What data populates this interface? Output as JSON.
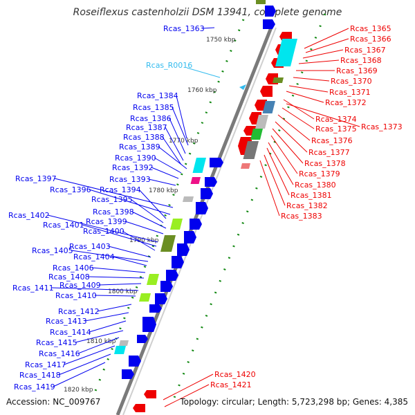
{
  "header": {
    "title": "Roseiflexus castenholzii DSM 13941, complete genome"
  },
  "footer": {
    "accession": "Accession: NC_009767",
    "topology_text": "Topology: circular; Length: 5,723,298 bp; Genes: 4,385"
  },
  "scale_labels": [
    "1750 kbp",
    "1760 kbp",
    "1770 kbp",
    "1780 kbp",
    "1790 kbp",
    "1800 kbp",
    "1810 kbp",
    "1820 kbp"
  ],
  "rna_labels": [
    "Rcas_R0016"
  ],
  "left_labels": [
    "Rcas_1363",
    "Rcas_1384",
    "Rcas_1385",
    "Rcas_1386",
    "Rcas_1387",
    "Rcas_1388",
    "Rcas_1389",
    "Rcas_1390",
    "Rcas_1392",
    "Rcas_1393",
    "Rcas_1397",
    "Rcas_1396",
    "Rcas_1394",
    "Rcas_1395",
    "Rcas_1398",
    "Rcas_1399",
    "Rcas_1402",
    "Rcas_1401",
    "Rcas_1400",
    "Rcas_1403",
    "Rcas_1405",
    "Rcas_1404",
    "Rcas_1406",
    "Rcas_1408",
    "Rcas_1409",
    "Rcas_1411",
    "Rcas_1410",
    "Rcas_1412",
    "Rcas_1413",
    "Rcas_1414",
    "Rcas_1415",
    "Rcas_1416",
    "Rcas_1417",
    "Rcas_1418",
    "Rcas_1419"
  ],
  "right_labels": [
    "Rcas_1365",
    "Rcas_1366",
    "Rcas_1367",
    "Rcas_1368",
    "Rcas_1369",
    "Rcas_1370",
    "Rcas_1371",
    "Rcas_1372",
    "Rcas_1374",
    "Rcas_1373",
    "Rcas_1375",
    "Rcas_1376",
    "Rcas_1377",
    "Rcas_1378",
    "Rcas_1379",
    "Rcas_1380",
    "Rcas_1381",
    "Rcas_1382",
    "Rcas_1383",
    "Rcas_1420",
    "Rcas_1421"
  ],
  "colors": {
    "backbone": "#7a7a7a",
    "forward_gene": "#0000ee",
    "reverse_gene": "#ee0000",
    "rna_label": "#33bbee",
    "tick": "#118811",
    "cyan": "#00e5ee",
    "lime": "#99ee22",
    "olive": "#6b8e23",
    "magenta": "#ee1188",
    "grey": "#bbbbbb",
    "steel": "#4682b4",
    "green": "#22bb33",
    "darkgrey": "#777777",
    "pink": "#ee7777"
  }
}
